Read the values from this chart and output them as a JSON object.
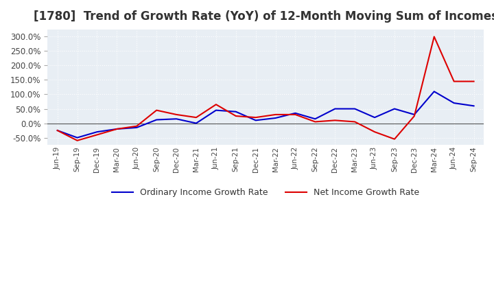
{
  "title": "[1780]  Trend of Growth Rate (YoY) of 12-Month Moving Sum of Incomes",
  "title_fontsize": 12,
  "ylim": [
    -75,
    325
  ],
  "yticks": [
    -50,
    0,
    50,
    100,
    150,
    200,
    250,
    300
  ],
  "background_color": "#ffffff",
  "plot_bg_color": "#e8eef4",
  "grid_color": "#ffffff",
  "zero_line_color": "#555555",
  "legend_labels": [
    "Ordinary Income Growth Rate",
    "Net Income Growth Rate"
  ],
  "line_colors": [
    "#0000cc",
    "#dd0000"
  ],
  "x_labels": [
    "Jun-19",
    "Sep-19",
    "Dec-19",
    "Mar-20",
    "Jun-20",
    "Sep-20",
    "Dec-20",
    "Mar-21",
    "Jun-21",
    "Sep-21",
    "Dec-21",
    "Mar-22",
    "Jun-22",
    "Sep-22",
    "Dec-22",
    "Mar-23",
    "Jun-23",
    "Sep-23",
    "Dec-23",
    "Mar-24",
    "Jun-24",
    "Sep-24"
  ],
  "ordinary_income": [
    -25,
    -50,
    -30,
    -20,
    -15,
    12,
    15,
    0,
    45,
    40,
    10,
    18,
    35,
    15,
    50,
    50,
    20,
    50,
    30,
    110,
    70,
    60
  ],
  "net_income": [
    -25,
    -60,
    -40,
    -20,
    -10,
    45,
    30,
    20,
    65,
    25,
    20,
    30,
    30,
    5,
    10,
    5,
    -30,
    -55,
    25,
    300,
    145,
    145
  ]
}
